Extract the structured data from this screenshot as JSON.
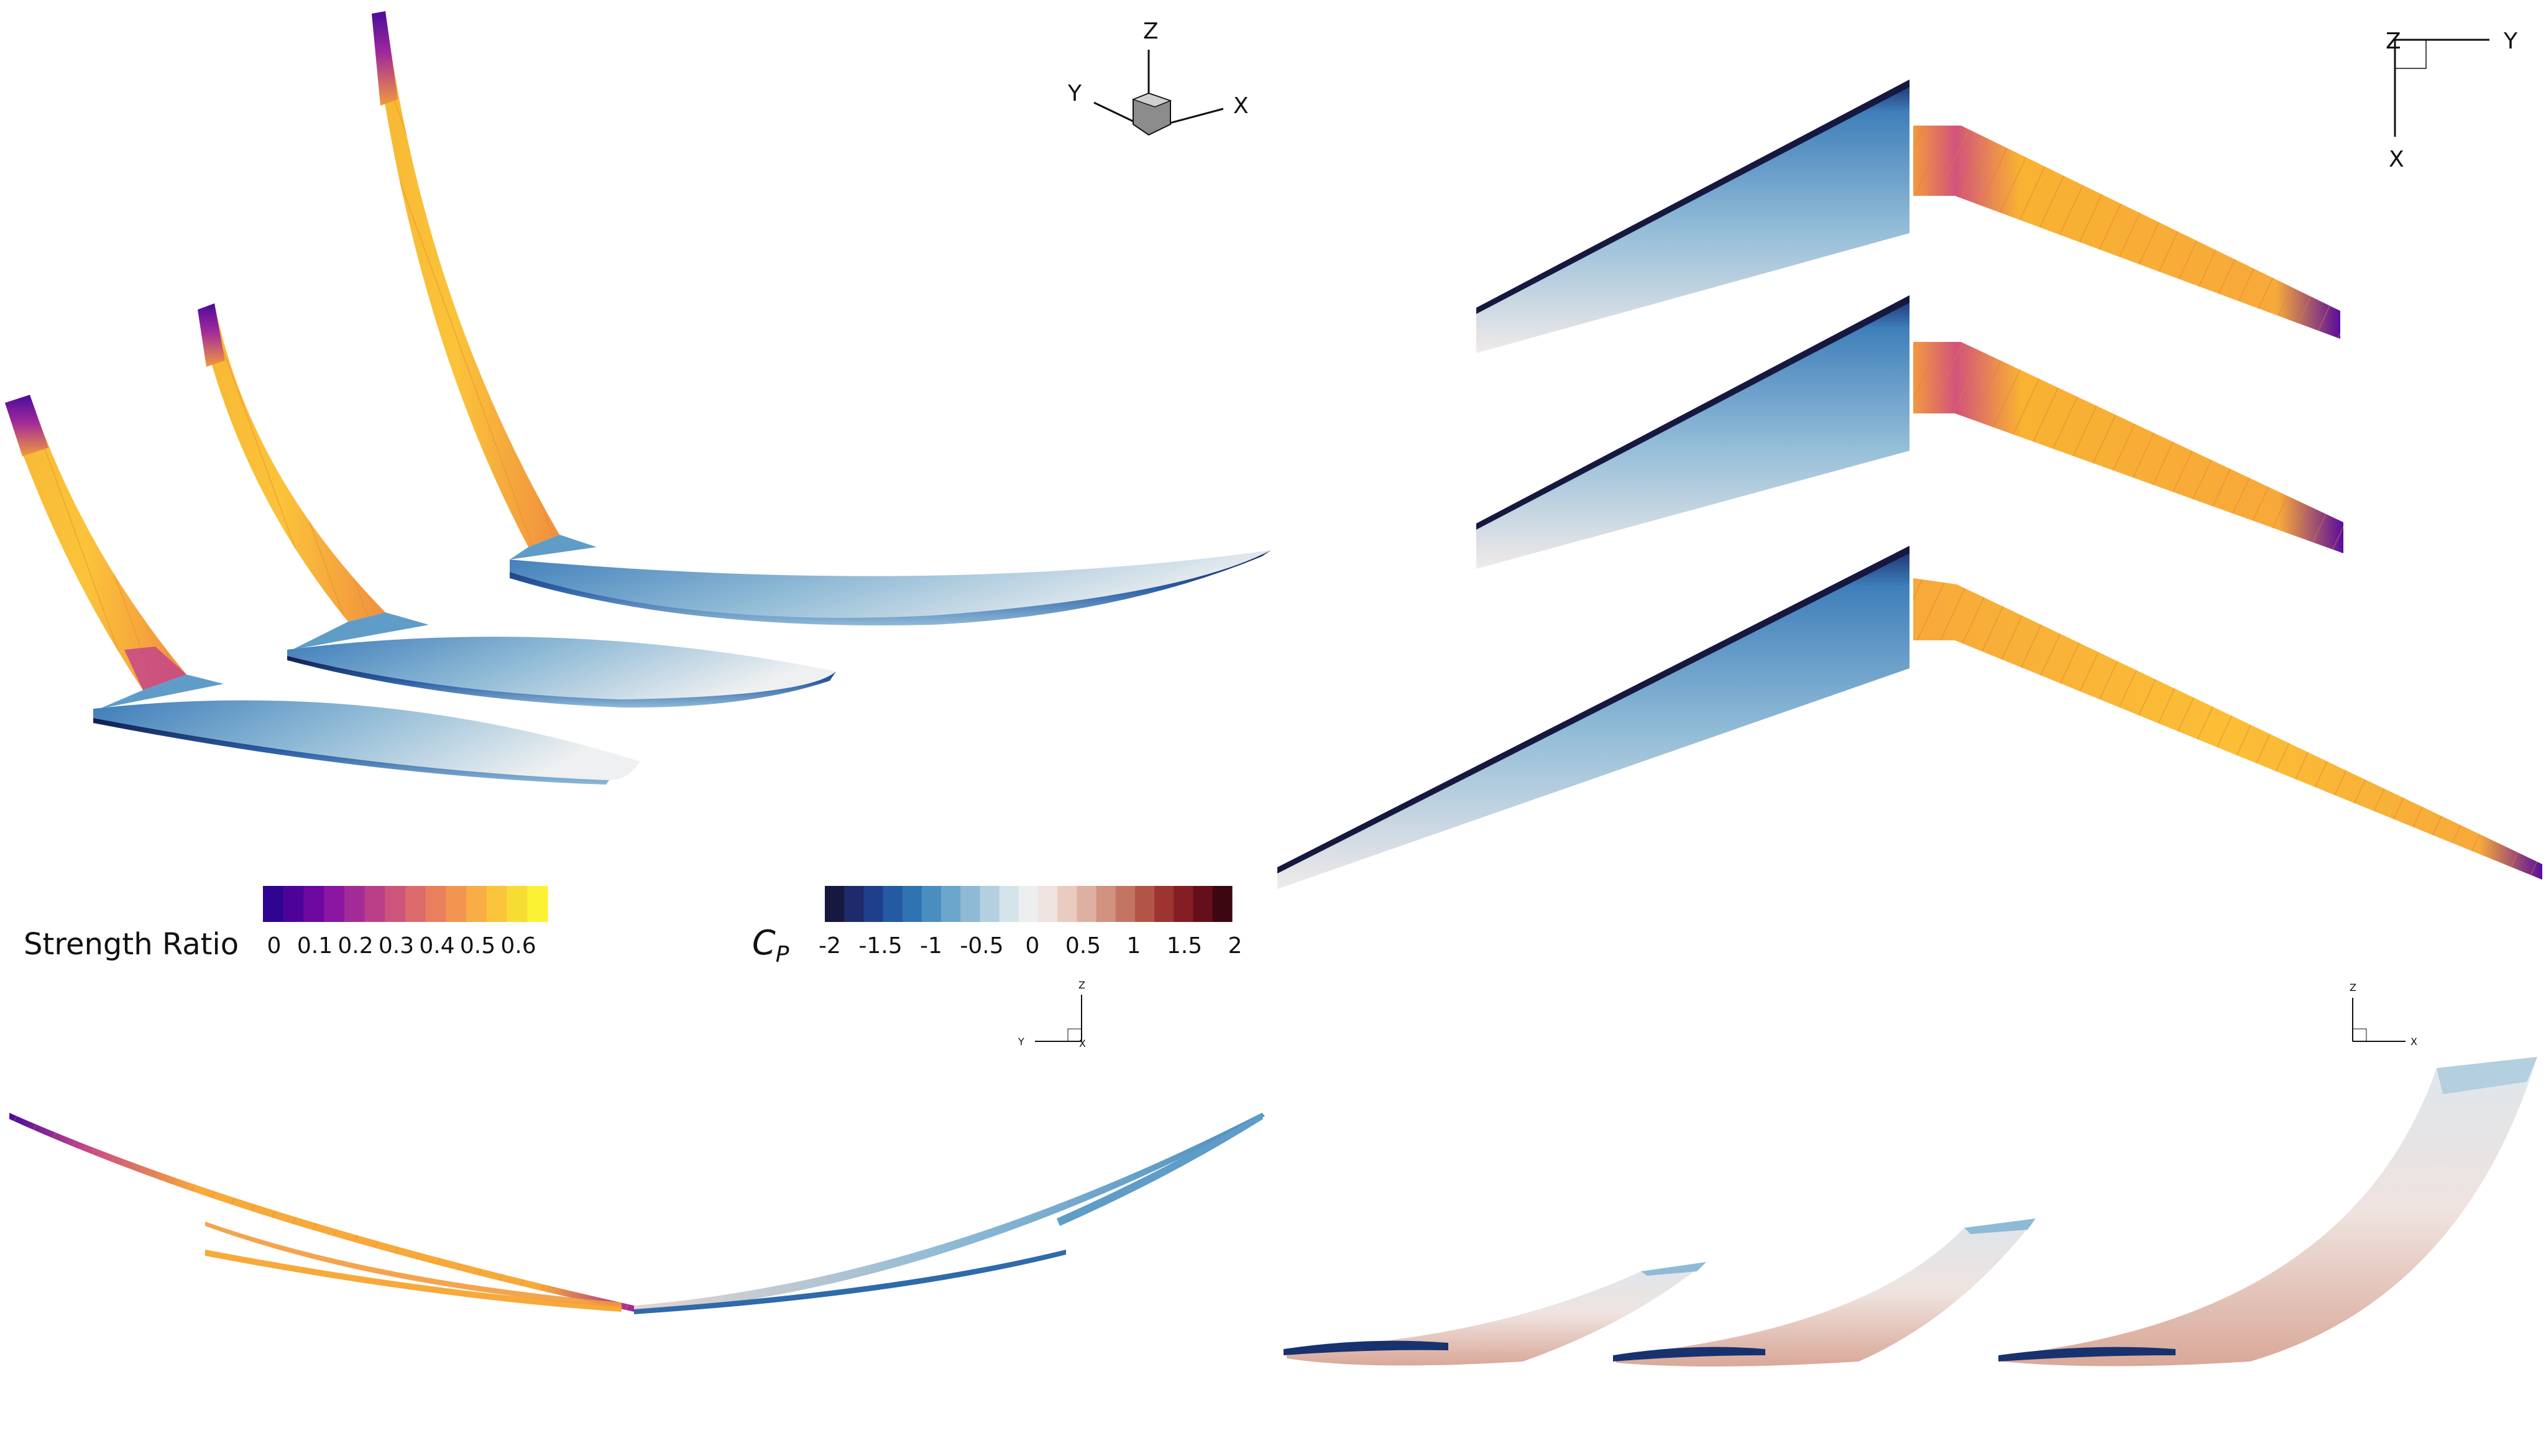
{
  "colorbars": {
    "strength": {
      "label": "Strength Ratio",
      "ticks": [
        "0",
        "0.1",
        "0.2",
        "0.3",
        "0.4",
        "0.5",
        "0.6"
      ],
      "colors": [
        "#2d0591",
        "#4d0399",
        "#6c08a0",
        "#8a16a2",
        "#a32b97",
        "#ba3f88",
        "#cd557b",
        "#dd6a6c",
        "#ea7f5d",
        "#f29551",
        "#f8ad45",
        "#fbc53b",
        "#f7dd33",
        "#fcf234"
      ]
    },
    "cp": {
      "label_main": "C",
      "label_sub": "P",
      "ticks": [
        "-2",
        "-1.5",
        "-1",
        "-0.5",
        "0",
        "0.5",
        "1",
        "1.5",
        "2"
      ],
      "colors": [
        "#17183f",
        "#1e2a6b",
        "#1f3f8c",
        "#245aa3",
        "#2f73b2",
        "#4a8ebf",
        "#6ba6cc",
        "#8fbad6",
        "#b3cfe0",
        "#d5e3ea",
        "#eceeef",
        "#efe3df",
        "#e9cbc2",
        "#deb0a2",
        "#d19280",
        "#c47561",
        "#b35546",
        "#9d3431",
        "#841d24",
        "#650f1a",
        "#3c0710"
      ]
    }
  },
  "axes": {
    "iso": {
      "z": "Z",
      "y": "Y",
      "x": "X"
    },
    "top": {
      "z": "Z",
      "y": "Y",
      "x": "X"
    },
    "front_left": {
      "z": "Z",
      "y": "Y",
      "x": "X"
    },
    "front_right": {
      "z": "Z",
      "x": "X"
    }
  },
  "palette": {
    "strength_bright": "#f9b232",
    "strength_mid": "#f39a3c",
    "strength_low": "#5a0d9c",
    "cp_dark": "#1a2a6b",
    "cp_mid": "#5f9dc8",
    "cp_light": "#e6ecf0",
    "cp_pos": "#e4c4b8"
  }
}
